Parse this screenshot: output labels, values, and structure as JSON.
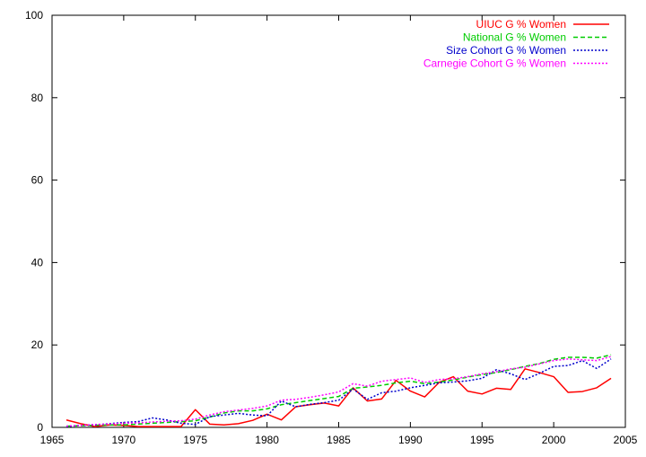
{
  "chart_data": {
    "type": "line",
    "title": "",
    "xlabel": "",
    "ylabel": "",
    "xlim": [
      1965,
      2005
    ],
    "ylim": [
      0,
      100
    ],
    "xticks": [
      "1965",
      "1970",
      "1975",
      "1980",
      "1985",
      "1990",
      "1995",
      "2000",
      "2005"
    ],
    "yticks": [
      "0",
      "20",
      "40",
      "60",
      "80",
      "100"
    ],
    "grid": false,
    "legend_position": "top-right",
    "x": [
      1966,
      1967,
      1968,
      1969,
      1970,
      1971,
      1972,
      1973,
      1974,
      1975,
      1976,
      1977,
      1978,
      1979,
      1980,
      1981,
      1982,
      1983,
      1984,
      1985,
      1986,
      1987,
      1988,
      1989,
      1990,
      1991,
      1992,
      1993,
      1994,
      1995,
      1996,
      1997,
      1998,
      1999,
      2000,
      2001,
      2002,
      2003,
      2004
    ],
    "series": [
      {
        "name": "UIUC G % Women",
        "color": "#ff0000",
        "dash": "solid",
        "values": [
          1.8,
          0.9,
          0.2,
          0.6,
          0.5,
          0.2,
          0.2,
          0.2,
          0.2,
          4.3,
          0.8,
          0.6,
          0.9,
          1.7,
          3.2,
          1.8,
          5.0,
          5.5,
          5.9,
          5.2,
          9.6,
          6.4,
          6.9,
          11.4,
          8.8,
          7.4,
          10.9,
          12.3,
          8.8,
          8.1,
          9.5,
          9.2,
          14.2,
          13.3,
          12.3,
          8.5,
          8.7,
          9.6,
          11.9
        ]
      },
      {
        "name": "National G % Women",
        "color": "#00cc00",
        "dash": "dashed",
        "values": [
          0.3,
          0.4,
          0.5,
          0.6,
          0.6,
          0.8,
          1.0,
          1.2,
          1.4,
          1.6,
          2.5,
          3.5,
          4.0,
          4.0,
          4.5,
          5.5,
          6.0,
          6.5,
          7.0,
          7.5,
          9.5,
          9.8,
          10.2,
          10.8,
          11.2,
          10.6,
          11.0,
          11.5,
          12.2,
          12.8,
          13.3,
          14.0,
          14.8,
          15.5,
          16.5,
          17.0,
          17.0,
          16.8,
          17.6
        ]
      },
      {
        "name": "Size Cohort G % Women",
        "color": "#0000cc",
        "dash": "dotted",
        "values": [
          0.2,
          0.5,
          0.6,
          0.9,
          1.2,
          1.4,
          2.3,
          1.8,
          1.0,
          0.7,
          2.6,
          3.0,
          3.4,
          3.0,
          2.8,
          6.4,
          5.0,
          5.6,
          6.0,
          6.6,
          9.3,
          6.8,
          8.4,
          8.8,
          9.6,
          10.2,
          10.8,
          11.0,
          11.3,
          11.9,
          14.0,
          13.0,
          11.6,
          13.1,
          14.8,
          15.0,
          16.2,
          14.3,
          16.6
        ]
      },
      {
        "name": "Carnegie Cohort G % Women",
        "color": "#ff00ff",
        "dash": "dotted",
        "values": [
          0.3,
          0.5,
          0.7,
          0.8,
          1.0,
          1.1,
          1.3,
          1.5,
          1.6,
          2.0,
          3.0,
          3.8,
          4.2,
          4.6,
          5.2,
          6.6,
          6.8,
          7.3,
          7.9,
          8.6,
          10.6,
          10.0,
          11.2,
          11.6,
          12.0,
          10.9,
          11.6,
          11.8,
          12.3,
          13.0,
          13.5,
          14.2,
          14.6,
          15.4,
          16.2,
          16.6,
          16.4,
          16.2,
          17.2
        ]
      }
    ]
  }
}
